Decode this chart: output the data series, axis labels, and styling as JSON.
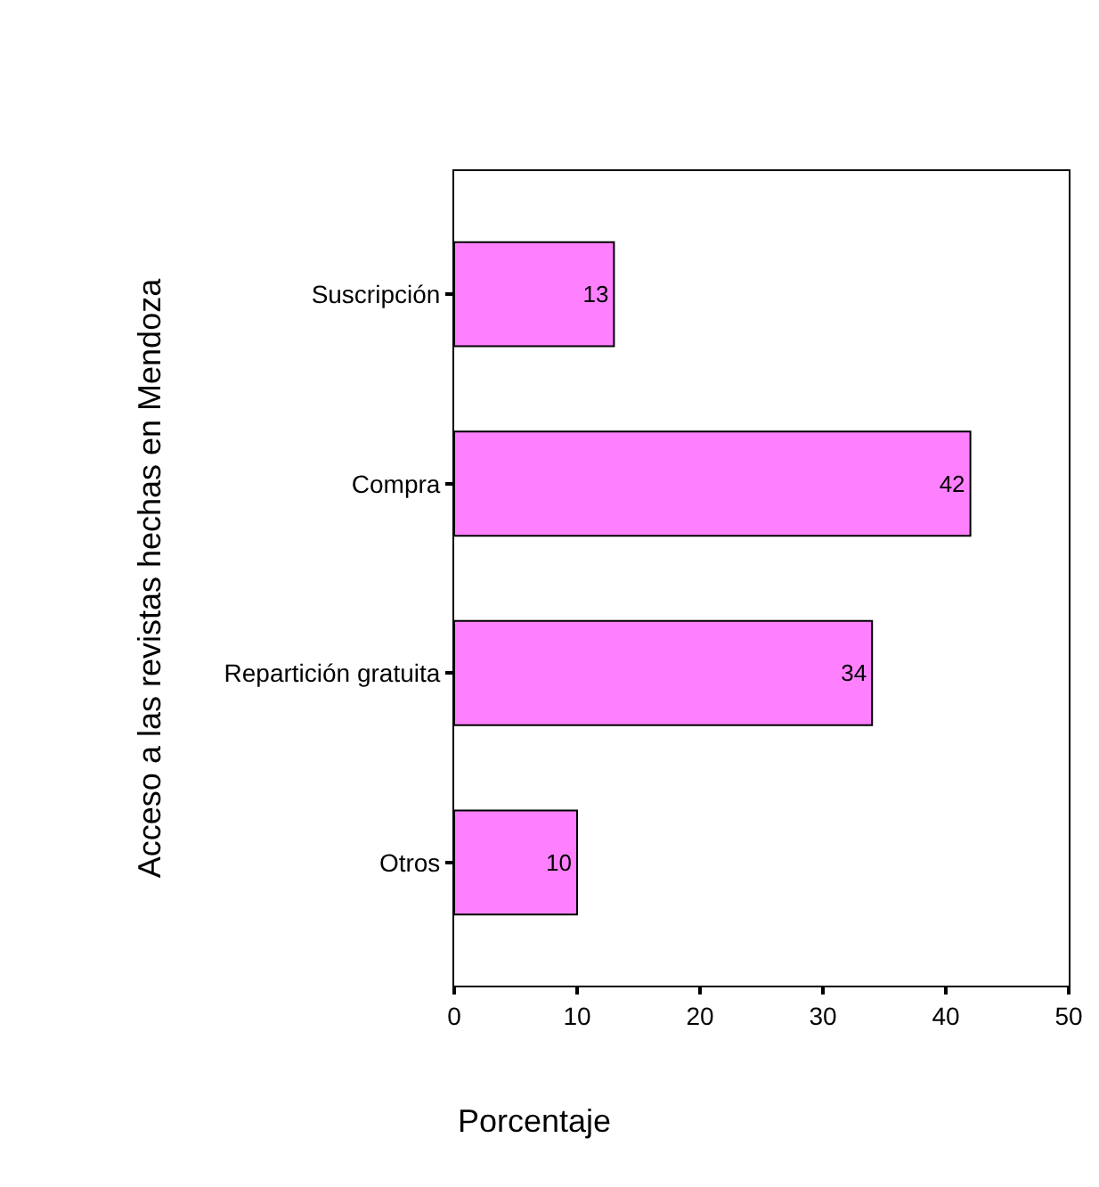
{
  "chart_data": {
    "type": "bar",
    "orientation": "horizontal",
    "ylabel": "Acceso a las revistas hechas en Mendoza",
    "xlabel": "Porcentaje",
    "categories": [
      "Suscripción",
      "Compra",
      "Repartición gratuita",
      "Otros"
    ],
    "values": [
      13,
      42,
      34,
      10
    ],
    "color": "#ff80ff",
    "xlim": [
      0,
      50
    ],
    "xticks": [
      0,
      10,
      20,
      30,
      40,
      50
    ],
    "data_labels": true
  }
}
